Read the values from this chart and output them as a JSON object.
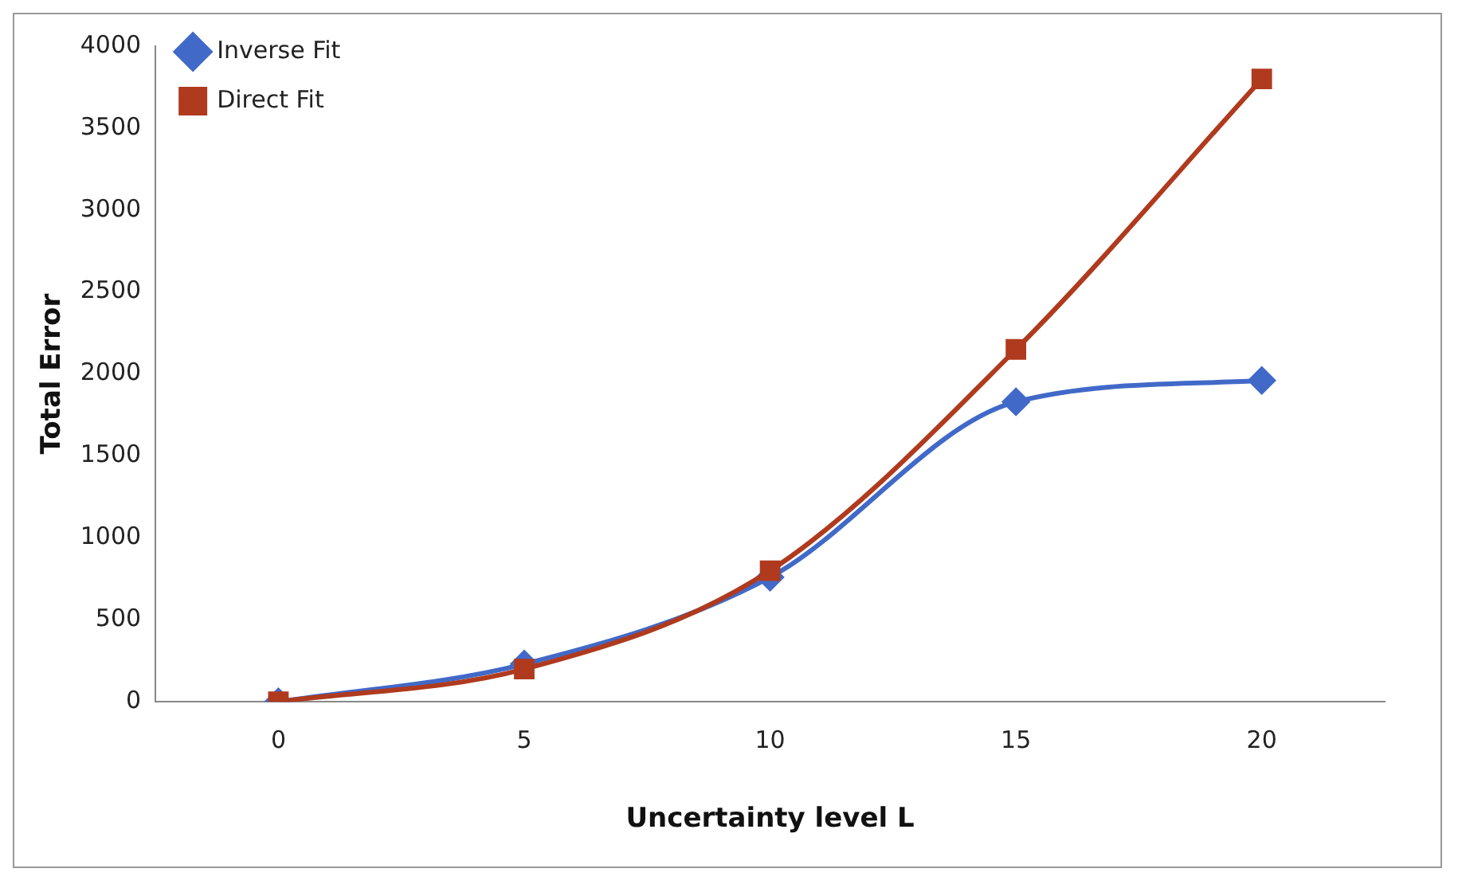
{
  "chart_data": {
    "type": "line",
    "xlabel": "Uncertainty level L",
    "ylabel": "Total Error",
    "categories": [
      "0",
      "5",
      "10",
      "15",
      "20"
    ],
    "series": [
      {
        "name": "Inverse Fit",
        "color": "#4169c8",
        "marker": "diamond",
        "values": [
          0,
          230,
          760,
          1830,
          1960
        ]
      },
      {
        "name": "Direct Fit",
        "color": "#b03a1e",
        "marker": "square",
        "values": [
          0,
          200,
          800,
          2150,
          3800
        ]
      }
    ],
    "ylim": [
      0,
      4000
    ],
    "yticks": [
      0,
      500,
      1000,
      1500,
      2000,
      2500,
      3000,
      3500,
      4000
    ],
    "grid": false,
    "legend": "top left"
  }
}
